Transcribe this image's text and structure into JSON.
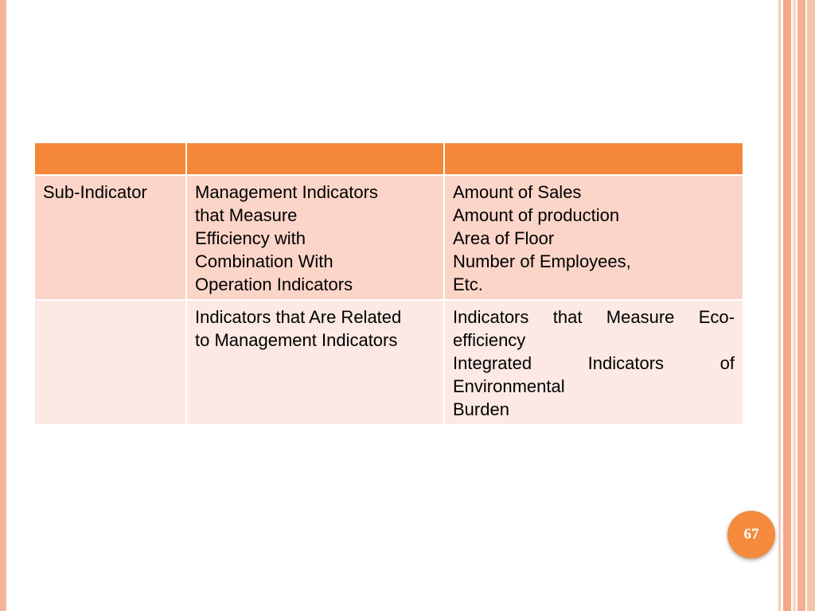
{
  "table": {
    "header": [
      "",
      "",
      ""
    ],
    "rows": [
      {
        "col1": "Sub-Indicator",
        "col2": [
          "Management Indicators",
          "that Measure",
          "Efficiency with",
          "Combination With",
          "Operation Indicators"
        ],
        "col3": [
          "Amount of Sales",
          "Amount of production",
          "Area of Floor",
          "Number of Employees,",
          "Etc."
        ]
      },
      {
        "col1": "",
        "col2": [
          "Indicators that Are Related",
          "to Management Indicators"
        ],
        "col3": [
          "Indicators that Measure Eco-",
          "efficiency",
          "Integrated Indicators of",
          "Environmental",
          "Burden"
        ]
      }
    ]
  },
  "page_number": "67",
  "colors": {
    "header_fill": "#f5873a",
    "row1_fill": "#fbd5c8",
    "row2_fill": "#fde9e3",
    "accent": "#f58a3d"
  }
}
